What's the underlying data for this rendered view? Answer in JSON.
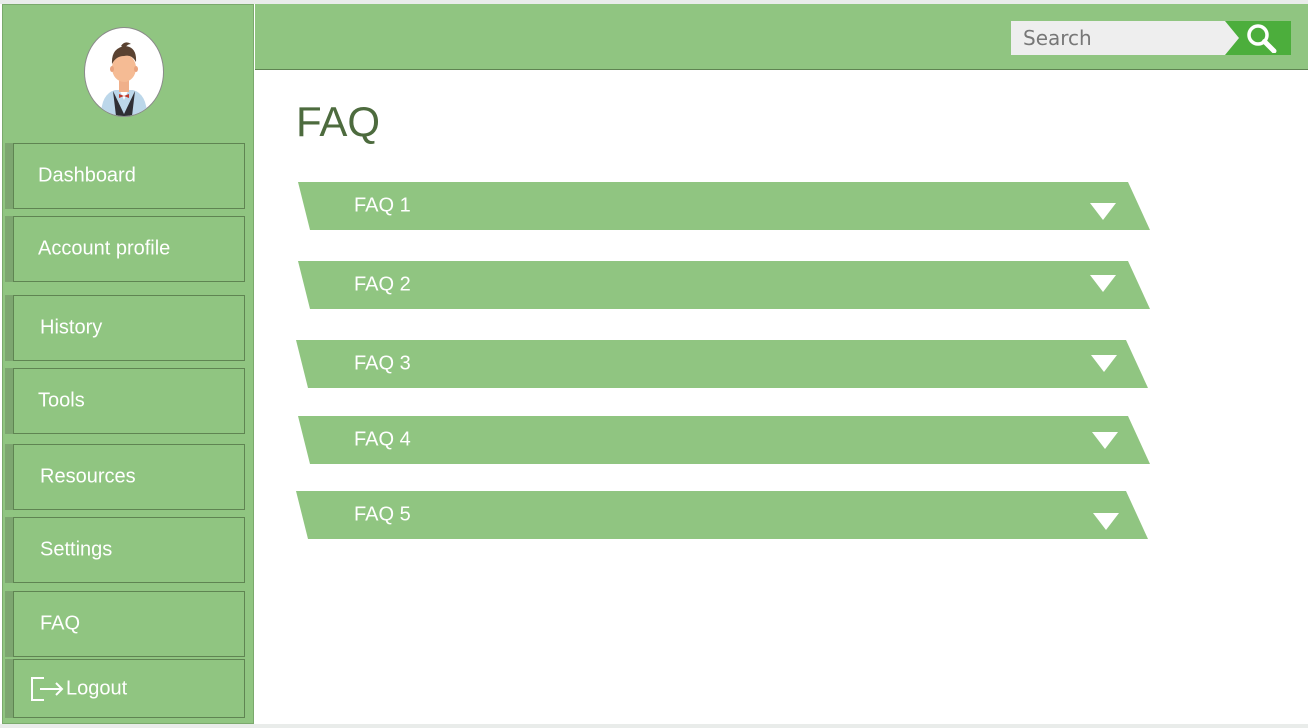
{
  "header": {
    "search": {
      "placeholder": "Search",
      "value": ""
    }
  },
  "sidebar": {
    "items": [
      {
        "label": "Dashboard"
      },
      {
        "label": "Account profile"
      },
      {
        "label": "History"
      },
      {
        "label": "Tools"
      },
      {
        "label": "Resources"
      },
      {
        "label": "Settings"
      },
      {
        "label": "FAQ"
      }
    ],
    "logout_label": "Logout"
  },
  "main": {
    "title": "FAQ",
    "faqs": [
      {
        "label": "FAQ 1"
      },
      {
        "label": "FAQ 2"
      },
      {
        "label": "FAQ 3"
      },
      {
        "label": "FAQ 4"
      },
      {
        "label": "FAQ 5"
      }
    ]
  },
  "colors": {
    "sidebar_green": "#90c581",
    "accent_green": "#4cae3c",
    "title_green": "#4d6b3e",
    "white": "#ffffff"
  }
}
